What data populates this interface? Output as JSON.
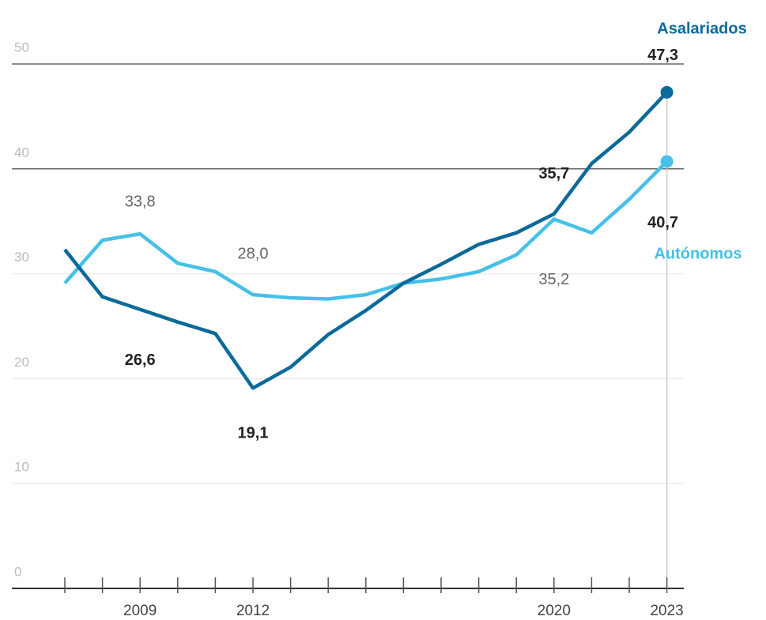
{
  "chart_data": {
    "type": "line",
    "categories": [
      null,
      null,
      "2009",
      null,
      null,
      "2012",
      null,
      null,
      null,
      null,
      null,
      null,
      null,
      "2020",
      null,
      null,
      "2023"
    ],
    "series": [
      {
        "name": "Asalariados",
        "color": "#0b6a99",
        "values": [
          32.3,
          27.8,
          26.6,
          25.4,
          24.3,
          19.1,
          21.1,
          24.2,
          26.5,
          29.1,
          30.9,
          32.8,
          33.9,
          35.7,
          40.5,
          43.5,
          47.3
        ],
        "value_labels": [
          null,
          null,
          "26,6",
          null,
          null,
          "19,1",
          null,
          null,
          null,
          null,
          null,
          null,
          null,
          "35,7",
          null,
          null,
          "47,3"
        ]
      },
      {
        "name": "Autónomos",
        "color": "#45c0e8",
        "values": [
          29.1,
          33.2,
          33.8,
          31.0,
          30.2,
          28.0,
          27.7,
          27.6,
          28.0,
          29.1,
          29.5,
          30.2,
          31.8,
          35.2,
          33.9,
          37.1,
          40.7
        ],
        "value_labels": [
          null,
          null,
          "33,8",
          null,
          null,
          "28,0",
          null,
          null,
          null,
          null,
          null,
          null,
          null,
          "35,2",
          null,
          null,
          "40,7"
        ]
      }
    ],
    "ylim": [
      0,
      50
    ],
    "yticks": [
      0,
      10,
      20,
      30,
      40,
      50
    ],
    "grid": true
  }
}
